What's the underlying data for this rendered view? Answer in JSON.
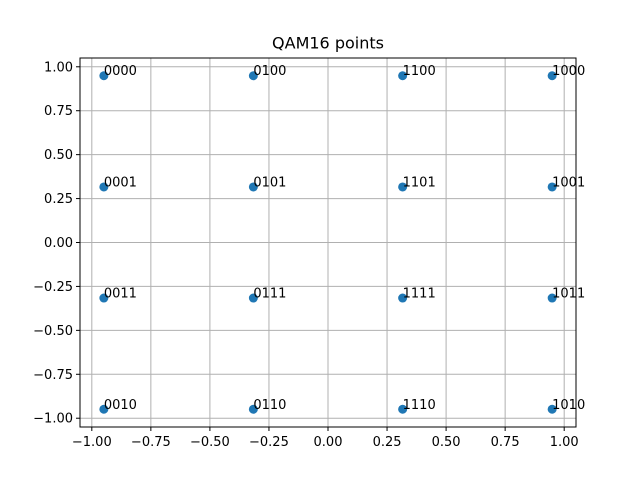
{
  "chart_data": {
    "type": "scatter",
    "title": "QAM16 points",
    "xlabel": "",
    "ylabel": "",
    "xlim": [
      -1.05,
      1.05
    ],
    "ylim": [
      -1.05,
      1.05
    ],
    "grid": true,
    "colors": {
      "marker": "#1f77b4",
      "grid": "#b0b0b0",
      "axis": "#000000"
    },
    "x_ticks": [
      {
        "value": -1.0,
        "label": "−1.00"
      },
      {
        "value": -0.75,
        "label": "−0.75"
      },
      {
        "value": -0.5,
        "label": "−0.50"
      },
      {
        "value": -0.25,
        "label": "−0.25"
      },
      {
        "value": 0.0,
        "label": "0.00"
      },
      {
        "value": 0.25,
        "label": "0.25"
      },
      {
        "value": 0.5,
        "label": "0.50"
      },
      {
        "value": 0.75,
        "label": "0.75"
      },
      {
        "value": 1.0,
        "label": "1.00"
      }
    ],
    "y_ticks": [
      {
        "value": -1.0,
        "label": "−1.00"
      },
      {
        "value": -0.75,
        "label": "−0.75"
      },
      {
        "value": -0.5,
        "label": "−0.50"
      },
      {
        "value": -0.25,
        "label": "−0.25"
      },
      {
        "value": 0.0,
        "label": "0.00"
      },
      {
        "value": 0.25,
        "label": "0.25"
      },
      {
        "value": 0.5,
        "label": "0.50"
      },
      {
        "value": 0.75,
        "label": "0.75"
      },
      {
        "value": 1.0,
        "label": "1.00"
      }
    ],
    "points": [
      {
        "x": -0.949,
        "y": 0.949,
        "label": "0000"
      },
      {
        "x": -0.316,
        "y": 0.949,
        "label": "0100"
      },
      {
        "x": 0.316,
        "y": 0.949,
        "label": "1100"
      },
      {
        "x": 0.949,
        "y": 0.949,
        "label": "1000"
      },
      {
        "x": -0.949,
        "y": 0.316,
        "label": "0001"
      },
      {
        "x": -0.316,
        "y": 0.316,
        "label": "0101"
      },
      {
        "x": 0.316,
        "y": 0.316,
        "label": "1101"
      },
      {
        "x": 0.949,
        "y": 0.316,
        "label": "1001"
      },
      {
        "x": -0.949,
        "y": -0.316,
        "label": "0011"
      },
      {
        "x": -0.316,
        "y": -0.316,
        "label": "0111"
      },
      {
        "x": 0.316,
        "y": -0.316,
        "label": "1111"
      },
      {
        "x": 0.949,
        "y": -0.316,
        "label": "1011"
      },
      {
        "x": -0.949,
        "y": -0.949,
        "label": "0010"
      },
      {
        "x": -0.316,
        "y": -0.949,
        "label": "0110"
      },
      {
        "x": 0.316,
        "y": -0.949,
        "label": "1110"
      },
      {
        "x": 0.949,
        "y": -0.949,
        "label": "1010"
      }
    ]
  }
}
